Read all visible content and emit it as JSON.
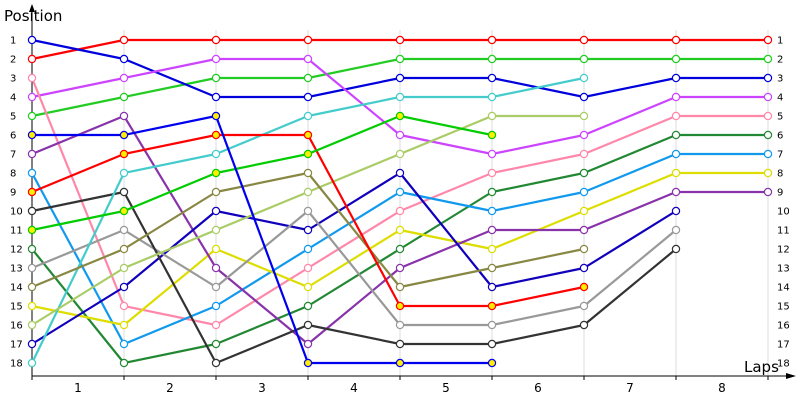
{
  "chart_data": {
    "type": "line",
    "title": "",
    "ylabel": "Position",
    "xlabel": "Laps",
    "x_ticks": [
      "1",
      "2",
      "3",
      "4",
      "5",
      "6",
      "7",
      "8"
    ],
    "y_ticks": [
      1,
      2,
      3,
      4,
      5,
      6,
      7,
      8,
      9,
      10,
      11,
      12,
      13,
      14,
      15,
      16,
      17,
      18
    ],
    "ylim": [
      1,
      18
    ],
    "y_inverted": true,
    "grid": true,
    "x_points": [
      0,
      1,
      2,
      3,
      4,
      5,
      6,
      7,
      8
    ],
    "series": [
      {
        "color": "#ff0000",
        "marker": "#ffffff",
        "values": [
          2,
          1,
          1,
          1,
          1,
          1,
          1,
          1,
          1
        ]
      },
      {
        "color": "#22cc22",
        "marker": "#ffffff",
        "values": [
          5,
          4,
          3,
          3,
          2,
          2,
          2,
          2,
          2
        ]
      },
      {
        "color": "#0000dd",
        "marker": "#ffffff",
        "values": [
          1,
          2,
          4,
          4,
          3,
          3,
          4,
          3,
          3
        ]
      },
      {
        "color": "#cc44ff",
        "marker": "#ffffff",
        "values": [
          4,
          3,
          2,
          2,
          6,
          7,
          6,
          4,
          4
        ]
      },
      {
        "color": "#ff88aa",
        "marker": "#ffffff",
        "values": [
          3,
          15,
          16,
          13,
          10,
          8,
          7,
          5,
          5
        ]
      },
      {
        "color": "#228833",
        "marker": "#ffffff",
        "values": [
          12,
          18,
          17,
          15,
          12,
          9,
          8,
          6,
          6
        ]
      },
      {
        "color": "#1199ee",
        "marker": "#ffffff",
        "values": [
          8,
          17,
          15,
          12,
          9,
          10,
          9,
          7,
          7
        ]
      },
      {
        "color": "#dddd00",
        "marker": "#ffffff",
        "values": [
          15,
          16,
          12,
          14,
          11,
          12,
          10,
          8,
          8
        ]
      },
      {
        "color": "#8833aa",
        "marker": "#ffffff",
        "values": [
          7,
          5,
          13,
          17,
          13,
          11,
          11,
          9,
          9
        ]
      },
      {
        "color": "#1100bb",
        "marker": "#ffffff",
        "values": [
          17,
          14,
          10,
          11,
          8,
          14,
          13,
          10,
          null
        ]
      },
      {
        "color": "#999999",
        "marker": "#ffffff",
        "values": [
          13,
          11,
          14,
          10,
          16,
          16,
          15,
          11,
          null
        ]
      },
      {
        "color": "#333333",
        "marker": "#ffffff",
        "values": [
          10,
          9,
          18,
          16,
          17,
          17,
          16,
          12,
          null
        ]
      },
      {
        "color": "#44cccc",
        "marker": "#ffffff",
        "values": [
          18,
          8,
          7,
          5,
          4,
          4,
          3,
          null,
          null
        ]
      },
      {
        "color": "#aacc66",
        "marker": "#ffffff",
        "values": [
          16,
          13,
          11,
          9,
          7,
          5,
          5,
          null,
          null
        ]
      },
      {
        "color": "#888844",
        "marker": "#ffffff",
        "values": [
          14,
          12,
          9,
          8,
          14,
          13,
          12,
          null,
          null
        ]
      },
      {
        "color": "#ff0000",
        "marker": "#ffee00",
        "values": [
          9,
          7,
          6,
          6,
          15,
          15,
          14,
          null,
          null
        ]
      },
      {
        "color": "#00cc00",
        "marker": "#ffee00",
        "values": [
          11,
          10,
          8,
          7,
          5,
          6,
          null,
          null,
          null
        ]
      },
      {
        "color": "#0000ee",
        "marker": "#ffee00",
        "values": [
          6,
          6,
          5,
          18,
          18,
          18,
          null,
          null,
          null
        ]
      }
    ]
  }
}
